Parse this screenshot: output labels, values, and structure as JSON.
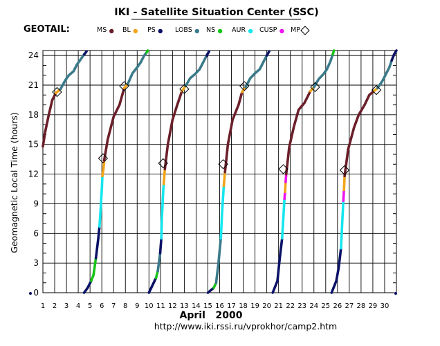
{
  "header": {
    "title": "IKI - Satellite Situation Center (SSC)",
    "satellite": "GEOTAIL:",
    "url": "http://www.iki.rssi.ru/vprokhor/camp2.htm"
  },
  "legend": {
    "items": [
      {
        "label": "MS",
        "color": "#6b1f2a",
        "marker": "dot"
      },
      {
        "label": "BL",
        "color": "#f2a51a",
        "marker": "dot"
      },
      {
        "label": "PS",
        "color": "#0b1266",
        "marker": "dot"
      },
      {
        "label": "LOBS",
        "color": "#3a7a8a",
        "marker": "dot"
      },
      {
        "label": "NS",
        "color": "#18c418",
        "marker": "dot"
      },
      {
        "label": "AUR",
        "color": "#14e6ee",
        "marker": "dot"
      },
      {
        "label": "CUSP",
        "color": "#ee14ee",
        "marker": "dot"
      },
      {
        "label": "MP",
        "color": "#000000",
        "marker": "diamond"
      }
    ]
  },
  "chart_data": {
    "type": "line",
    "xlabel": "April   2000",
    "ylabel": "Geomagnetic  Local  Time  (hours)",
    "xlim": [
      1,
      31
    ],
    "ylim": [
      0,
      24.5
    ],
    "x_ticks": [
      "1",
      "2",
      "3",
      "4",
      "5",
      "6",
      "7",
      "8",
      "9",
      "10",
      "11",
      "12",
      "13",
      "14",
      "15",
      "16",
      "17",
      "18",
      "19",
      "20",
      "21",
      "22",
      "23",
      "24",
      "25",
      "26",
      "27",
      "28",
      "29",
      "30"
    ],
    "y_ticks": [
      "0",
      "3",
      "6",
      "9",
      "12",
      "15",
      "18",
      "21",
      "24"
    ],
    "grid": true,
    "region_colors": {
      "MS": "#6b1f2a",
      "BL": "#f2a51a",
      "PS": "#0b1266",
      "LOBS": "#3a7a8a",
      "NS": "#18c418",
      "AUR": "#14e6ee",
      "CUSP": "#ee14ee"
    },
    "orbits": [
      {
        "segments": [
          {
            "region": "MS",
            "points": [
              [
                1.0,
                14.8
              ],
              [
                1.2,
                16.3
              ],
              [
                1.5,
                18.0
              ],
              [
                1.8,
                19.5
              ],
              [
                2.1,
                20.2
              ]
            ]
          },
          {
            "region": "BL",
            "points": [
              [
                2.1,
                20.2
              ],
              [
                2.5,
                20.6
              ]
            ]
          },
          {
            "region": "LOBS",
            "points": [
              [
                2.5,
                20.6
              ],
              [
                2.9,
                21.5
              ],
              [
                3.2,
                22.0
              ],
              [
                3.6,
                22.4
              ],
              [
                3.9,
                23.1
              ],
              [
                4.2,
                23.6
              ],
              [
                4.5,
                24.1
              ]
            ]
          },
          {
            "region": "PS",
            "points": [
              [
                4.5,
                24.1
              ],
              [
                4.7,
                24.4
              ]
            ]
          }
        ]
      },
      {
        "segments": [
          {
            "region": "PS",
            "points": [
              [
                4.5,
                0.0
              ],
              [
                4.8,
                0.5
              ],
              [
                5.1,
                1.2
              ]
            ]
          },
          {
            "region": "NS",
            "points": [
              [
                5.1,
                1.2
              ],
              [
                5.3,
                1.8
              ],
              [
                5.5,
                3.5
              ]
            ]
          },
          {
            "region": "PS",
            "points": [
              [
                5.5,
                3.5
              ],
              [
                5.7,
                5.5
              ],
              [
                5.8,
                6.7
              ]
            ]
          },
          {
            "region": "AUR",
            "points": [
              [
                5.8,
                6.7
              ],
              [
                5.9,
                8.5
              ],
              [
                6.0,
                10.5
              ],
              [
                6.05,
                11.8
              ]
            ]
          },
          {
            "region": "BL",
            "points": [
              [
                6.05,
                11.8
              ],
              [
                6.15,
                12.6
              ],
              [
                6.2,
                13.4
              ]
            ]
          },
          {
            "region": "MS",
            "points": [
              [
                6.2,
                13.4
              ],
              [
                6.5,
                15.5
              ],
              [
                7.0,
                17.8
              ],
              [
                7.5,
                19.0
              ],
              [
                7.9,
                20.7
              ]
            ]
          },
          {
            "region": "BL",
            "points": [
              [
                7.9,
                20.7
              ],
              [
                8.2,
                21.1
              ]
            ]
          },
          {
            "region": "LOBS",
            "points": [
              [
                8.2,
                21.1
              ],
              [
                8.6,
                22.2
              ],
              [
                9.0,
                22.8
              ],
              [
                9.3,
                23.3
              ],
              [
                9.6,
                24.0
              ],
              [
                9.8,
                24.3
              ]
            ]
          },
          {
            "region": "NS",
            "points": [
              [
                9.8,
                24.3
              ],
              [
                9.9,
                24.5
              ]
            ]
          }
        ]
      },
      {
        "segments": [
          {
            "region": "PS",
            "points": [
              [
                10.0,
                0.0
              ],
              [
                10.4,
                1.0
              ],
              [
                10.6,
                1.5
              ]
            ]
          },
          {
            "region": "NS",
            "points": [
              [
                10.6,
                1.5
              ],
              [
                10.75,
                2.2
              ]
            ]
          },
          {
            "region": "LOBS",
            "points": [
              [
                10.75,
                2.2
              ],
              [
                10.95,
                4.0
              ]
            ]
          },
          {
            "region": "PS",
            "points": [
              [
                10.95,
                4.0
              ],
              [
                11.05,
                5.5
              ]
            ]
          },
          {
            "region": "AUR",
            "points": [
              [
                11.05,
                5.5
              ],
              [
                11.1,
                7.5
              ],
              [
                11.2,
                10.0
              ],
              [
                11.25,
                11.0
              ]
            ]
          },
          {
            "region": "BL",
            "points": [
              [
                11.25,
                11.0
              ],
              [
                11.35,
                12.5
              ]
            ]
          },
          {
            "region": "MS",
            "points": [
              [
                11.35,
                12.5
              ],
              [
                11.6,
                15.0
              ],
              [
                12.0,
                17.5
              ],
              [
                12.4,
                19.0
              ],
              [
                12.8,
                20.4
              ]
            ]
          },
          {
            "region": "BL",
            "points": [
              [
                12.8,
                20.4
              ],
              [
                13.1,
                20.9
              ]
            ]
          },
          {
            "region": "LOBS",
            "points": [
              [
                13.1,
                20.9
              ],
              [
                13.5,
                21.7
              ],
              [
                13.9,
                22.1
              ],
              [
                14.3,
                22.6
              ],
              [
                14.6,
                23.3
              ],
              [
                14.9,
                24.0
              ]
            ]
          },
          {
            "region": "PS",
            "points": [
              [
                14.9,
                24.0
              ],
              [
                15.1,
                24.4
              ]
            ]
          }
        ]
      },
      {
        "segments": [
          {
            "region": "PS",
            "points": [
              [
                15.0,
                0.0
              ],
              [
                15.5,
                0.5
              ]
            ]
          },
          {
            "region": "NS",
            "points": [
              [
                15.5,
                0.5
              ],
              [
                15.7,
                1.0
              ]
            ]
          },
          {
            "region": "LOBS",
            "points": [
              [
                15.7,
                1.0
              ],
              [
                15.9,
                3.0
              ],
              [
                16.1,
                5.5
              ]
            ]
          },
          {
            "region": "AUR",
            "points": [
              [
                16.1,
                5.5
              ],
              [
                16.2,
                8.0
              ],
              [
                16.35,
                10.8
              ]
            ]
          },
          {
            "region": "BL",
            "points": [
              [
                16.35,
                10.8
              ],
              [
                16.45,
                12.2
              ]
            ]
          },
          {
            "region": "MS",
            "points": [
              [
                16.45,
                12.2
              ],
              [
                16.7,
                15.0
              ],
              [
                17.1,
                17.5
              ],
              [
                17.6,
                19.0
              ],
              [
                17.9,
                20.3
              ]
            ]
          },
          {
            "region": "BL",
            "points": [
              [
                17.9,
                20.3
              ],
              [
                18.2,
                20.8
              ]
            ]
          },
          {
            "region": "LOBS",
            "points": [
              [
                18.2,
                20.8
              ],
              [
                18.6,
                21.7
              ],
              [
                19.0,
                22.2
              ],
              [
                19.4,
                22.6
              ],
              [
                19.7,
                23.3
              ],
              [
                20.0,
                24.0
              ]
            ]
          },
          {
            "region": "PS",
            "points": [
              [
                20.0,
                24.0
              ],
              [
                20.2,
                24.4
              ]
            ]
          }
        ]
      },
      {
        "segments": [
          {
            "region": "PS",
            "points": [
              [
                20.5,
                0.0
              ],
              [
                20.9,
                1.2
              ],
              [
                21.1,
                3.5
              ],
              [
                21.3,
                5.5
              ]
            ]
          },
          {
            "region": "AUR",
            "points": [
              [
                21.3,
                5.5
              ],
              [
                21.4,
                7.5
              ],
              [
                21.5,
                9.5
              ]
            ]
          },
          {
            "region": "CUSP",
            "points": [
              [
                21.5,
                9.5
              ],
              [
                21.55,
                10.2
              ]
            ]
          },
          {
            "region": "BL",
            "points": [
              [
                21.55,
                10.2
              ],
              [
                21.6,
                11.2
              ]
            ]
          },
          {
            "region": "CUSP",
            "points": [
              [
                21.6,
                11.2
              ],
              [
                21.65,
                12.0
              ]
            ]
          },
          {
            "region": "MS",
            "points": [
              [
                21.65,
                12.0
              ],
              [
                21.9,
                14.7
              ],
              [
                22.3,
                16.8
              ],
              [
                22.7,
                18.5
              ],
              [
                23.2,
                19.2
              ],
              [
                23.7,
                20.4
              ]
            ]
          },
          {
            "region": "BL",
            "points": [
              [
                23.7,
                20.4
              ],
              [
                24.0,
                20.8
              ]
            ]
          },
          {
            "region": "LOBS",
            "points": [
              [
                24.0,
                20.8
              ],
              [
                24.4,
                21.6
              ],
              [
                24.8,
                22.1
              ],
              [
                25.1,
                22.6
              ],
              [
                25.4,
                23.4
              ],
              [
                25.6,
                24.1
              ]
            ]
          },
          {
            "region": "NS",
            "points": [
              [
                25.6,
                24.1
              ],
              [
                25.7,
                24.5
              ]
            ]
          }
        ]
      },
      {
        "segments": [
          {
            "region": "PS",
            "points": [
              [
                25.5,
                0.0
              ],
              [
                25.9,
                1.2
              ],
              [
                26.1,
                2.5
              ],
              [
                26.3,
                4.5
              ]
            ]
          },
          {
            "region": "AUR",
            "points": [
              [
                26.3,
                4.5
              ],
              [
                26.4,
                7.0
              ],
              [
                26.5,
                9.3
              ]
            ]
          },
          {
            "region": "CUSP",
            "points": [
              [
                26.5,
                9.3
              ],
              [
                26.55,
                10.4
              ]
            ]
          },
          {
            "region": "BL",
            "points": [
              [
                26.55,
                10.4
              ],
              [
                26.6,
                11.8
              ]
            ]
          },
          {
            "region": "MS",
            "points": [
              [
                26.6,
                11.8
              ],
              [
                26.9,
                14.5
              ],
              [
                27.4,
                16.7
              ],
              [
                27.8,
                18.0
              ],
              [
                28.3,
                19.0
              ],
              [
                28.7,
                20.0
              ],
              [
                29.1,
                20.4
              ]
            ]
          },
          {
            "region": "BL",
            "points": [
              [
                29.1,
                20.4
              ],
              [
                29.4,
                20.7
              ]
            ]
          },
          {
            "region": "LOBS",
            "points": [
              [
                29.4,
                20.7
              ],
              [
                29.8,
                21.4
              ],
              [
                30.1,
                22.1
              ],
              [
                30.4,
                22.8
              ],
              [
                30.6,
                23.5
              ]
            ]
          },
          {
            "region": "PS",
            "points": [
              [
                30.6,
                23.5
              ],
              [
                30.8,
                24.1
              ],
              [
                31.0,
                24.5
              ]
            ]
          }
        ]
      }
    ],
    "magnetopause_crossings": [
      [
        2.2,
        20.3
      ],
      [
        6.1,
        13.6
      ],
      [
        7.9,
        20.9
      ],
      [
        11.2,
        13.1
      ],
      [
        13.0,
        20.6
      ],
      [
        16.3,
        13.0
      ],
      [
        18.1,
        20.9
      ],
      [
        21.4,
        12.5
      ],
      [
        24.1,
        20.8
      ],
      [
        26.6,
        12.4
      ],
      [
        29.3,
        20.5
      ]
    ]
  }
}
